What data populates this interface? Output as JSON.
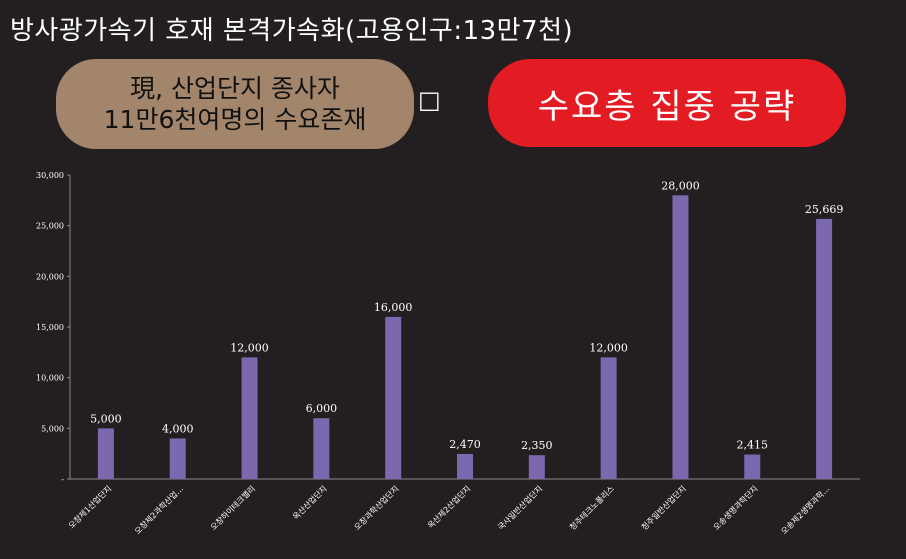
{
  "headline": "방사광가속기 호재 본격가속화(고용인구:13만7천)",
  "callout_left": {
    "line1": "現, 산업단지 종사자",
    "line2": "11만6천여명의 수요존재"
  },
  "stray_glyph": "□",
  "callout_right": "수요층 집중 공략",
  "colors": {
    "bar": "#7b68ae",
    "background": "#231f20",
    "pill_left": "#a2856a",
    "pill_right": "#e31b23"
  },
  "chart_data": {
    "type": "bar",
    "categories": [
      "오창제1산업단지",
      "오창제2과학산업…",
      "오창하이테크밸리",
      "옥산산업단지",
      "오창과학산업단지",
      "옥산제2산업단지",
      "국사일반산업단지",
      "청주테크노폴리스",
      "청주일반산업단지",
      "오송생명과학단지",
      "오송제2생명과학…"
    ],
    "values": [
      5000,
      4000,
      12000,
      6000,
      16000,
      2470,
      2350,
      12000,
      28000,
      2415,
      25669
    ],
    "value_labels": [
      "5,000",
      "4,000",
      "12,000",
      "6,000",
      "16,000",
      "2,470",
      "2,350",
      "12,000",
      "28,000",
      "2,415",
      "25,669"
    ],
    "yticks": [
      0,
      5000,
      10000,
      15000,
      20000,
      25000,
      30000
    ],
    "ytick_labels": [
      "-",
      "5,000",
      "10,000",
      "15,000",
      "20,000",
      "25,000",
      "30,000"
    ],
    "ylim": [
      0,
      30000
    ],
    "grid": false
  }
}
